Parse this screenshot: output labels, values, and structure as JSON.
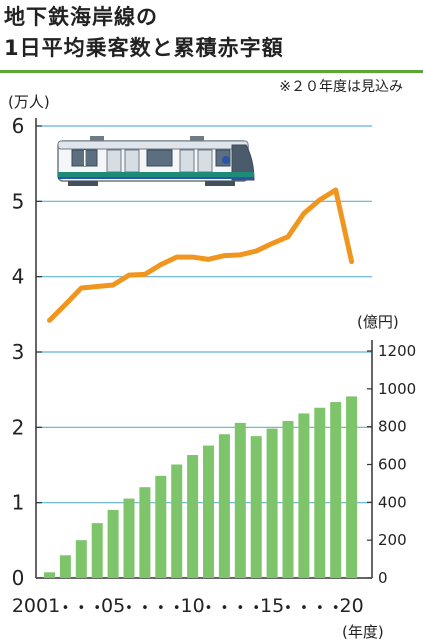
{
  "header": {
    "title_line1": "地下鉄海岸線の",
    "title_line2": "1日平均乗客数と累積赤字額",
    "note": "※２０年度は見込み"
  },
  "colors": {
    "bar": "#7ec46a",
    "line": "#f0961e",
    "grid": "#5fb3d6",
    "title_rule": "#5aa832"
  },
  "chart_data": {
    "type": "bar+line",
    "categories": [
      "2001",
      "•",
      "•",
      "•",
      "05",
      "•",
      "•",
      "•",
      "•",
      "10",
      "•",
      "•",
      "•",
      "•",
      "15",
      "•",
      "•",
      "•",
      "•",
      "20"
    ],
    "x": [
      2001,
      2002,
      2003,
      2004,
      2005,
      2006,
      2007,
      2008,
      2009,
      2010,
      2011,
      2012,
      2013,
      2014,
      2015,
      2016,
      2017,
      2018,
      2019,
      2020
    ],
    "xlabel": "(年度)",
    "left_axis": {
      "label": "(万人)",
      "ylim": [
        0,
        6
      ],
      "ticks": [
        0,
        1,
        2,
        3,
        4,
        5,
        6
      ]
    },
    "right_axis": {
      "label": "(億円)",
      "ylim": [
        0,
        1200
      ],
      "ticks": [
        0,
        200,
        400,
        600,
        800,
        1000,
        1200
      ]
    },
    "series": [
      {
        "type": "line",
        "axis": "left",
        "values": [
          3.42,
          3.63,
          3.85,
          3.87,
          3.89,
          4.02,
          4.03,
          4.16,
          4.26,
          4.26,
          4.23,
          4.28,
          4.29,
          4.34,
          4.44,
          4.53,
          4.84,
          5.02,
          5.15,
          4.2
        ]
      },
      {
        "type": "bar",
        "axis": "right",
        "values": [
          30,
          120,
          200,
          290,
          360,
          420,
          480,
          540,
          600,
          650,
          700,
          760,
          820,
          750,
          790,
          830,
          870,
          900,
          930,
          960
        ]
      }
    ],
    "grid": true
  }
}
